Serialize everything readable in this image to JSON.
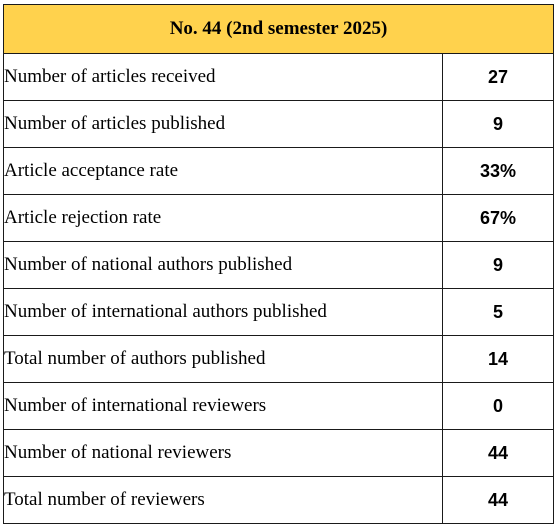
{
  "title": "No. 44 (2nd semester 2025)",
  "colors": {
    "header_background": "#ffd24d",
    "border": "#1a1a1a",
    "text": "#000000"
  },
  "rows": [
    {
      "label": "Number of articles received",
      "value": "27"
    },
    {
      "label": "Number of articles published",
      "value": "9"
    },
    {
      "label": "Article acceptance rate",
      "value": "33%"
    },
    {
      "label": "Article rejection rate",
      "value": "67%"
    },
    {
      "label": "Number of national authors published",
      "value": "9"
    },
    {
      "label": "Number of international authors published",
      "value": "5"
    },
    {
      "label": "Total number of authors published",
      "value": "14"
    },
    {
      "label": "Number of international reviewers",
      "value": "0"
    },
    {
      "label": "Number of national reviewers",
      "value": "44"
    },
    {
      "label": "Total number of reviewers",
      "value": "44"
    }
  ]
}
